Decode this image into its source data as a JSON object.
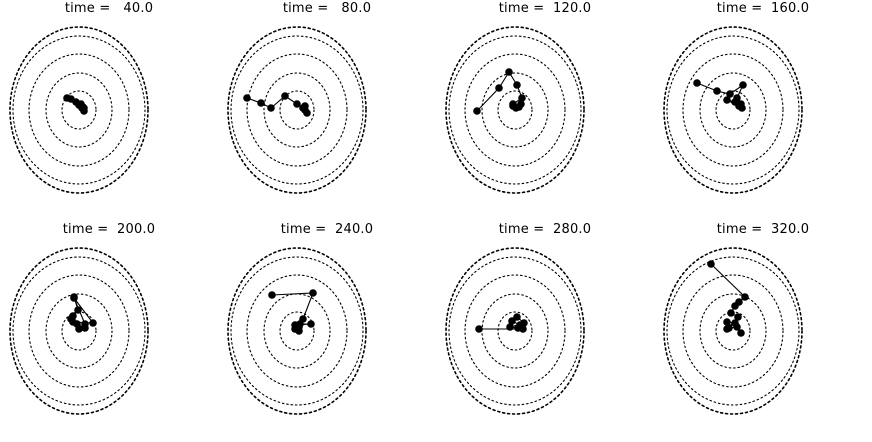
{
  "chart_data": [
    {
      "type": "scatter",
      "title": "time =   40.0",
      "chain": [
        [
          -12,
          -12
        ],
        [
          -8,
          -11
        ],
        [
          -3,
          -8
        ],
        [
          0,
          -5
        ],
        [
          3,
          -2
        ],
        [
          5,
          1
        ],
        [
          4,
          -3
        ],
        [
          2,
          -6
        ],
        [
          5,
          -2
        ]
      ]
    },
    {
      "type": "scatter",
      "title": "time =   80.0",
      "chain": [
        [
          -50,
          -12
        ],
        [
          -36,
          -7
        ],
        [
          -26,
          -2
        ],
        [
          -12,
          -14
        ],
        [
          0,
          -6
        ],
        [
          6,
          -2
        ],
        [
          8,
          0
        ],
        [
          10,
          3
        ],
        [
          8,
          -4
        ]
      ]
    },
    {
      "type": "scatter",
      "title": "time =  120.0",
      "chain": [
        [
          -38,
          1
        ],
        [
          -16,
          -22
        ],
        [
          -6,
          -38
        ],
        [
          2,
          -25
        ],
        [
          7,
          -12
        ],
        [
          -2,
          -6
        ],
        [
          4,
          -3
        ],
        [
          -2,
          -4
        ],
        [
          6,
          -6
        ],
        [
          1,
          -2
        ]
      ]
    },
    {
      "type": "scatter",
      "title": "time =  160.0",
      "chain": [
        [
          -36,
          -27
        ],
        [
          -16,
          -19
        ],
        [
          -3,
          -16
        ],
        [
          10,
          -25
        ],
        [
          4,
          -12
        ],
        [
          8,
          -6
        ],
        [
          2,
          -8
        ],
        [
          -6,
          -10
        ],
        [
          6,
          -4
        ],
        [
          9,
          -2
        ]
      ]
    },
    {
      "type": "scatter",
      "title": "time =  200.0",
      "chain": [
        [
          -5,
          -34
        ],
        [
          -1,
          -21
        ],
        [
          -6,
          -15
        ],
        [
          -8,
          -12
        ],
        [
          -2,
          -7
        ],
        [
          0,
          -2
        ],
        [
          6,
          -3
        ],
        [
          -6,
          -9
        ],
        [
          14,
          -8
        ],
        [
          -5,
          -33
        ],
        [
          6,
          -7
        ]
      ]
    },
    {
      "type": "scatter",
      "title": "time =  240.0",
      "chain": [
        [
          -25,
          -36
        ],
        [
          16,
          -38
        ],
        [
          6,
          -12
        ],
        [
          2,
          -4
        ],
        [
          -2,
          -2
        ],
        [
          2,
          0
        ],
        [
          -2,
          -6
        ],
        [
          14,
          -7
        ],
        [
          3,
          -7
        ]
      ]
    },
    {
      "type": "scatter",
      "title": "time =  280.0",
      "chain": [
        [
          -36,
          -2
        ],
        [
          8,
          -2
        ],
        [
          3,
          -3
        ],
        [
          -5,
          -4
        ],
        [
          9,
          -8
        ],
        [
          2,
          -14
        ],
        [
          -3,
          -10
        ],
        [
          5,
          -6
        ]
      ]
    },
    {
      "type": "scatter",
      "title": "time =  320.0",
      "chain": [
        [
          -22,
          -67
        ],
        [
          12,
          -34
        ],
        [
          6,
          -29
        ],
        [
          2,
          -25
        ],
        [
          -2,
          -18
        ],
        [
          5,
          -14
        ],
        [
          -6,
          -2
        ],
        [
          2,
          -8
        ],
        [
          -6,
          -9
        ],
        [
          -4,
          -3
        ],
        [
          4,
          -4
        ],
        [
          8,
          2
        ]
      ]
    }
  ]
}
